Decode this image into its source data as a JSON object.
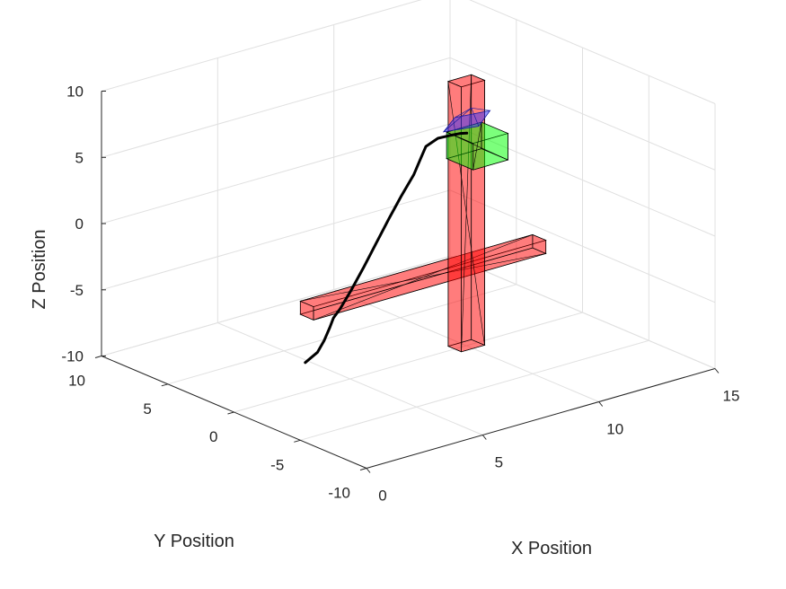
{
  "chart_data": {
    "type": "line3d",
    "view": "3d-perspective",
    "grid": true,
    "xlabel": "X Position",
    "ylabel": "Y Position",
    "zlabel": "Z Position",
    "xlim": [
      0,
      15
    ],
    "ylim": [
      -10,
      10
    ],
    "zlim": [
      -10,
      10
    ],
    "xticks": [
      "0",
      "5",
      "10",
      "15"
    ],
    "yticks": [
      "-10",
      "-5",
      "0",
      "5",
      "10"
    ],
    "zticks": [
      "-10",
      "-5",
      "0",
      "5",
      "10"
    ],
    "trajectory": {
      "color": "#000000",
      "points": [
        [
          0.5,
          -4.5,
          -4.6
        ],
        [
          1.2,
          -4.2,
          -4.3
        ],
        [
          1.6,
          -4.0,
          -3.7
        ],
        [
          1.9,
          -3.9,
          -2.9
        ],
        [
          2.0,
          -4.0,
          -2.2
        ],
        [
          2.4,
          -3.8,
          -1.8
        ],
        [
          3.2,
          -3.2,
          -1.1
        ],
        [
          4.2,
          -2.4,
          -0.2
        ],
        [
          5.2,
          -1.6,
          0.8
        ],
        [
          6.2,
          -0.8,
          1.8
        ],
        [
          7.2,
          0.0,
          2.7
        ],
        [
          8.2,
          0.8,
          3.5
        ],
        [
          8.9,
          1.5,
          4.1
        ],
        [
          9.4,
          2.0,
          4.5
        ],
        [
          10.2,
          2.5,
          4.5
        ],
        [
          11.0,
          3.0,
          4.1
        ],
        [
          11.8,
          3.6,
          3.6
        ],
        [
          12.3,
          4.0,
          3.2
        ]
      ]
    },
    "obstacles": [
      {
        "name": "horizontal bar",
        "color": "#ff0000",
        "opacity": 0.6,
        "min": [
          0,
          -6,
          -0.5
        ],
        "max": [
          10,
          -5,
          0.5
        ]
      },
      {
        "name": "vertical column",
        "color": "#ff0000",
        "opacity": 0.6,
        "min": [
          9.5,
          -0.5,
          -10
        ],
        "max": [
          10.5,
          0.5,
          10
        ]
      }
    ],
    "start_region": {
      "color": "#00ff00",
      "opacity": 0.6,
      "min": [
        12,
        3,
        1
      ],
      "max": [
        13.5,
        5,
        3
      ]
    },
    "vehicle": {
      "color": "#3030ff",
      "opacity": 0.5,
      "center": [
        12.3,
        4.0,
        3.8
      ]
    }
  }
}
